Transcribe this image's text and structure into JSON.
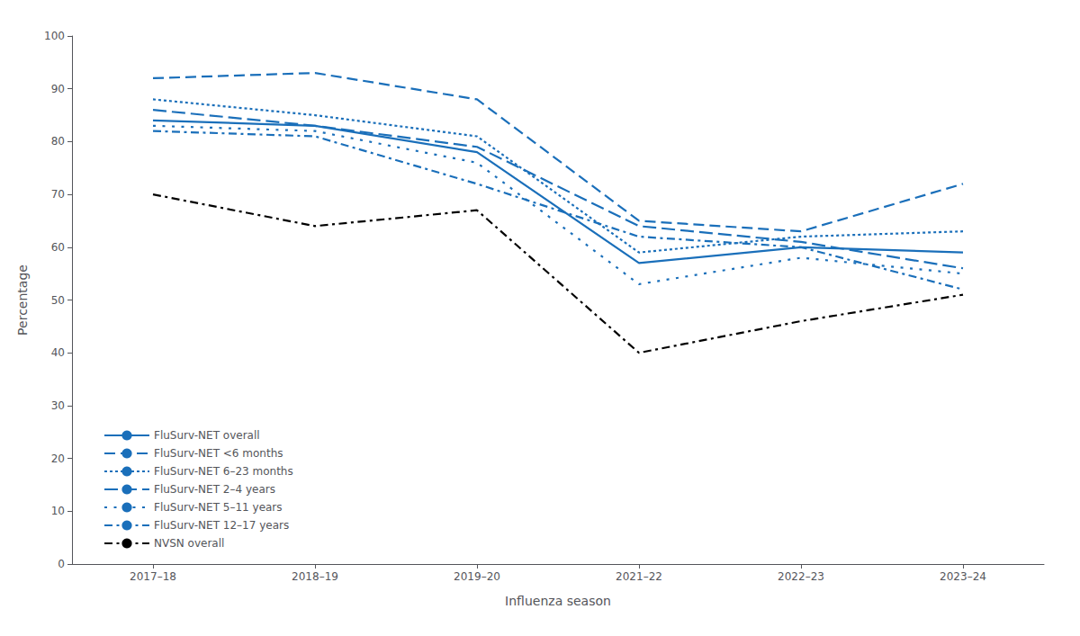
{
  "chart_data": {
    "type": "line",
    "xlabel": "Influenza season",
    "ylabel": "Percentage",
    "categories": [
      "2017–18",
      "2018–19",
      "2019–20",
      "2021–22",
      "2022–23",
      "2023–24"
    ],
    "series": [
      {
        "name": "FluSurv-NET overall",
        "color": "#1a6fba",
        "line_style": "solid",
        "values": [
          84,
          83,
          78,
          57,
          60,
          59
        ]
      },
      {
        "name": "FluSurv-NET <6 months",
        "color": "#1a6fba",
        "line_style": "dashed",
        "values": [
          92,
          93,
          88,
          65,
          63,
          72
        ]
      },
      {
        "name": "FluSurv-NET 6–23 months",
        "color": "#1a6fba",
        "line_style": "dotted",
        "values": [
          88,
          85,
          81,
          59,
          62,
          63
        ]
      },
      {
        "name": "FluSurv-NET 2–4 years",
        "color": "#1a6fba",
        "line_style": "long_dash",
        "values": [
          86,
          83,
          79,
          64,
          61,
          56
        ]
      },
      {
        "name": "FluSurv-NET 5–11 years",
        "color": "#1a6fba",
        "line_style": "loosely_dotted",
        "values": [
          83,
          82,
          76,
          53,
          58,
          55
        ]
      },
      {
        "name": "FluSurv-NET 12–17 years",
        "color": "#1a6fba",
        "line_style": "dashdot",
        "values": [
          82,
          81,
          72,
          62,
          60,
          52
        ]
      },
      {
        "name": "NVSN overall",
        "color": "#000000",
        "line_style": "dashdot",
        "values": [
          70,
          64,
          67,
          40,
          46,
          51
        ]
      }
    ],
    "ylim": [
      0,
      100
    ],
    "yticks": [
      0,
      10,
      20,
      30,
      40,
      50,
      60,
      70,
      80,
      90,
      100
    ],
    "grid": false,
    "legend": "lower left"
  }
}
